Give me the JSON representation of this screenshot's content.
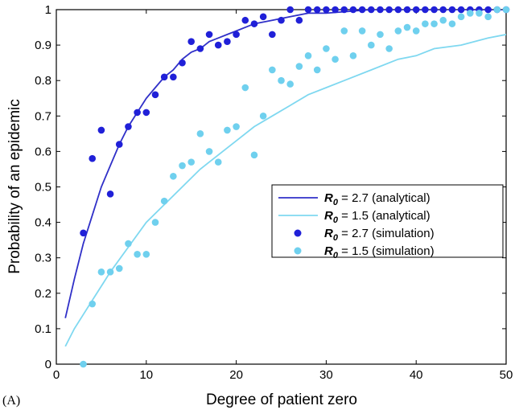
{
  "panel_label": "(A)",
  "chart_data": {
    "type": "line",
    "xlabel": "Degree of patient zero",
    "ylabel": "Probability of an epidemic",
    "xlim": [
      0,
      50
    ],
    "ylim": [
      0,
      1
    ],
    "xticks": [
      0,
      10,
      20,
      30,
      40,
      50
    ],
    "yticks": [
      0,
      0.1,
      0.2,
      0.3,
      0.4,
      0.5,
      0.6,
      0.7,
      0.8,
      0.9,
      1
    ],
    "grid": false,
    "legend_position": "center-right",
    "series": [
      {
        "name": "R0 = 2.7 (analytical)",
        "legend_symbol": "R",
        "legend_subscript": "0",
        "legend_rest": " = 2.7 (analytical)",
        "kind": "line",
        "color": "#3030c8",
        "x": [
          1,
          2,
          3,
          4,
          5,
          6,
          7,
          8,
          9,
          10,
          11,
          12,
          13,
          14,
          15,
          16,
          17,
          18,
          19,
          20,
          22,
          24,
          26,
          28,
          30,
          35,
          40,
          45,
          50
        ],
        "y": [
          0.13,
          0.24,
          0.34,
          0.42,
          0.5,
          0.56,
          0.62,
          0.67,
          0.71,
          0.75,
          0.78,
          0.81,
          0.83,
          0.86,
          0.88,
          0.89,
          0.91,
          0.92,
          0.93,
          0.94,
          0.96,
          0.97,
          0.98,
          0.99,
          0.99,
          1.0,
          1.0,
          1.0,
          1.0
        ]
      },
      {
        "name": "R0 = 1.5 (analytical)",
        "legend_symbol": "R",
        "legend_subscript": "0",
        "legend_rest": " = 1.5 (analytical)",
        "kind": "line",
        "color": "#7fd8f0",
        "x": [
          1,
          2,
          3,
          4,
          5,
          6,
          8,
          10,
          12,
          14,
          16,
          18,
          20,
          22,
          24,
          26,
          28,
          30,
          32,
          35,
          38,
          40,
          42,
          45,
          48,
          50
        ],
        "y": [
          0.05,
          0.1,
          0.14,
          0.18,
          0.22,
          0.26,
          0.33,
          0.4,
          0.45,
          0.5,
          0.55,
          0.59,
          0.63,
          0.67,
          0.7,
          0.73,
          0.76,
          0.78,
          0.8,
          0.83,
          0.86,
          0.87,
          0.89,
          0.9,
          0.92,
          0.93
        ]
      },
      {
        "name": "R0 = 2.7 (simulation)",
        "legend_symbol": "R",
        "legend_subscript": "0",
        "legend_rest": " = 2.7 (simulation)",
        "kind": "scatter",
        "color": "#2020d8",
        "x": [
          3,
          4,
          5,
          6,
          7,
          8,
          9,
          10,
          11,
          12,
          13,
          14,
          15,
          16,
          17,
          18,
          19,
          20,
          21,
          22,
          23,
          24,
          25,
          26,
          27,
          28,
          29,
          30,
          31,
          32,
          33,
          34,
          35,
          36,
          37,
          38,
          39,
          40,
          41,
          42,
          43,
          44,
          45,
          46,
          47,
          48,
          49,
          50
        ],
        "y": [
          0.37,
          0.58,
          0.66,
          0.48,
          0.62,
          0.67,
          0.71,
          0.71,
          0.76,
          0.81,
          0.81,
          0.85,
          0.91,
          0.89,
          0.93,
          0.9,
          0.91,
          0.93,
          0.97,
          0.96,
          0.98,
          0.93,
          0.97,
          1.0,
          0.97,
          1.0,
          1.0,
          1.0,
          1.0,
          1.0,
          1.0,
          1.0,
          1.0,
          1.0,
          1.0,
          1.0,
          1.0,
          1.0,
          1.0,
          1.0,
          1.0,
          1.0,
          1.0,
          1.0,
          1.0,
          1.0,
          1.0,
          1.0
        ]
      },
      {
        "name": "R0 = 1.5 (simulation)",
        "legend_symbol": "R",
        "legend_subscript": "0",
        "legend_rest": " = 1.5 (simulation)",
        "kind": "scatter",
        "color": "#6fd0ee",
        "x": [
          3,
          4,
          5,
          6,
          7,
          8,
          9,
          10,
          11,
          12,
          13,
          14,
          15,
          16,
          17,
          18,
          19,
          20,
          21,
          22,
          23,
          24,
          25,
          26,
          27,
          28,
          29,
          30,
          31,
          32,
          33,
          34,
          35,
          36,
          37,
          38,
          39,
          40,
          41,
          42,
          43,
          44,
          45,
          46,
          47,
          48,
          49,
          50
        ],
        "y": [
          0.0,
          0.17,
          0.26,
          0.26,
          0.27,
          0.34,
          0.31,
          0.31,
          0.4,
          0.46,
          0.53,
          0.56,
          0.57,
          0.65,
          0.6,
          0.57,
          0.66,
          0.67,
          0.78,
          0.59,
          0.7,
          0.83,
          0.8,
          0.79,
          0.84,
          0.87,
          0.83,
          0.89,
          0.86,
          0.94,
          0.87,
          0.94,
          0.9,
          0.93,
          0.89,
          0.94,
          0.95,
          0.94,
          0.96,
          0.96,
          0.97,
          0.96,
          0.98,
          0.99,
          0.99,
          0.98,
          1.0,
          1.0
        ]
      }
    ]
  }
}
